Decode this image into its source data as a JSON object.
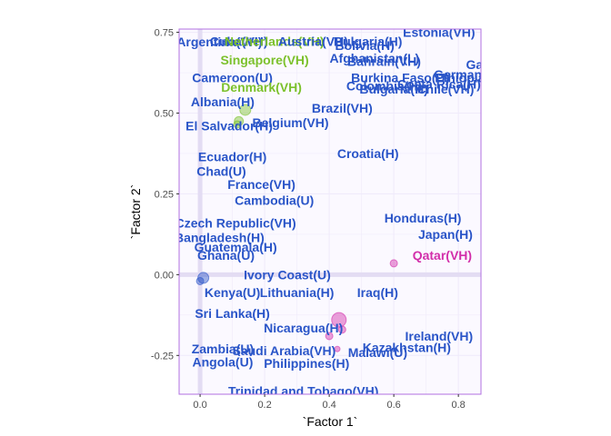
{
  "chart_data": {
    "type": "scatter",
    "xlabel": "`Factor 1`",
    "ylabel": "`Factor 2`",
    "xlim": [
      -0.065,
      0.87
    ],
    "ylim": [
      -0.37,
      0.76
    ],
    "x_ticks": [
      0.0,
      0.2,
      0.4,
      0.6,
      0.8
    ],
    "y_ticks": [
      -0.25,
      0.0,
      0.25,
      0.5,
      0.75
    ],
    "x_tick_labels": [
      "0.0",
      "0.2",
      "0.4",
      "0.6",
      "0.8"
    ],
    "y_tick_labels": [
      "-0.25",
      "0.00",
      "0.25",
      "0.50",
      "0.75"
    ],
    "grid": true,
    "colors": {
      "blue": "#2a55c8",
      "green": "#7cc12c",
      "magenta": "#d22faa",
      "panel_border": "#b070e0",
      "panel_bg": "#fbf9ff",
      "grid": "#f0ebfb"
    },
    "markers": [
      {
        "x": 0.14,
        "y": 0.51,
        "r": 6,
        "color": "green"
      },
      {
        "x": 0.12,
        "y": 0.475,
        "r": 5,
        "color": "green"
      },
      {
        "x": 0.115,
        "y": 0.465,
        "r": 4,
        "color": "green"
      },
      {
        "x": 0.6,
        "y": 0.035,
        "r": 4,
        "color": "magenta"
      },
      {
        "x": 0.43,
        "y": -0.14,
        "r": 8,
        "color": "magenta"
      },
      {
        "x": 0.44,
        "y": -0.17,
        "r": 4,
        "color": "magenta"
      },
      {
        "x": 0.4,
        "y": -0.19,
        "r": 4,
        "color": "magenta"
      },
      {
        "x": 0.425,
        "y": -0.23,
        "r": 3,
        "color": "magenta"
      },
      {
        "x": 0.01,
        "y": -0.01,
        "r": 6,
        "color": "blue"
      },
      {
        "x": 0.0,
        "y": -0.02,
        "r": 4,
        "color": "blue"
      }
    ],
    "labels": [
      {
        "text": "Argentina(VH)",
        "x": 0.06,
        "y": 0.72,
        "color": "blue"
      },
      {
        "text": "Cuba(VH)",
        "x": 0.12,
        "y": 0.722,
        "color": "blue"
      },
      {
        "text": "Netherlands(VH)",
        "x": 0.23,
        "y": 0.722,
        "color": "green"
      },
      {
        "text": "Austria(VH)",
        "x": 0.35,
        "y": 0.722,
        "color": "blue"
      },
      {
        "text": "Bulgaria(H)",
        "x": 0.52,
        "y": 0.722,
        "color": "blue"
      },
      {
        "text": "Bolivia(H)",
        "x": 0.51,
        "y": 0.71,
        "color": "blue"
      },
      {
        "text": "Afghanistan(L)",
        "x": 0.54,
        "y": 0.67,
        "color": "blue"
      },
      {
        "text": "Bahrain(VH)",
        "x": 0.57,
        "y": 0.66,
        "color": "blue"
      },
      {
        "text": "Estonia(VH)",
        "x": 0.74,
        "y": 0.75,
        "color": "blue"
      },
      {
        "text": "Singapore(VH)",
        "x": 0.2,
        "y": 0.665,
        "color": "green"
      },
      {
        "text": "Cameroon(U)",
        "x": 0.1,
        "y": 0.61,
        "color": "blue"
      },
      {
        "text": "Denmark(VH)",
        "x": 0.19,
        "y": 0.58,
        "color": "green"
      },
      {
        "text": "Albania(H)",
        "x": 0.07,
        "y": 0.535,
        "color": "blue"
      },
      {
        "text": "El Salvador(H)",
        "x": 0.09,
        "y": 0.46,
        "color": "blue"
      },
      {
        "text": "Belgium(VH)",
        "x": 0.28,
        "y": 0.47,
        "color": "blue"
      },
      {
        "text": "Burkina Faso(U)",
        "x": 0.62,
        "y": 0.61,
        "color": "blue"
      },
      {
        "text": "Ethiopia(L)",
        "x": 0.83,
        "y": 0.61,
        "color": "blue"
      },
      {
        "text": "Germany(VH)",
        "x": 0.85,
        "y": 0.62,
        "color": "blue"
      },
      {
        "text": "Ga",
        "x": 0.85,
        "y": 0.65,
        "color": "blue"
      },
      {
        "text": "Colombia(H)",
        "x": 0.57,
        "y": 0.585,
        "color": "blue"
      },
      {
        "text": "Costa Rica(H)",
        "x": 0.74,
        "y": 0.59,
        "color": "blue"
      },
      {
        "text": "Bulgaria(H)",
        "x": 0.6,
        "y": 0.575,
        "color": "blue"
      },
      {
        "text": "Chile(VH)",
        "x": 0.76,
        "y": 0.575,
        "color": "blue"
      },
      {
        "text": "Brazil(VH)",
        "x": 0.44,
        "y": 0.515,
        "color": "blue"
      },
      {
        "text": "Croatia(H)",
        "x": 0.52,
        "y": 0.375,
        "color": "blue"
      },
      {
        "text": "Ecuador(H)",
        "x": 0.1,
        "y": 0.365,
        "color": "blue"
      },
      {
        "text": "Chad(U)",
        "x": 0.066,
        "y": 0.32,
        "color": "blue"
      },
      {
        "text": "France(VH)",
        "x": 0.19,
        "y": 0.28,
        "color": "blue"
      },
      {
        "text": "Cambodia(U)",
        "x": 0.23,
        "y": 0.23,
        "color": "blue"
      },
      {
        "text": "Czech Republic(VH)",
        "x": 0.11,
        "y": 0.16,
        "color": "blue"
      },
      {
        "text": "Honduras(H)",
        "x": 0.69,
        "y": 0.175,
        "color": "blue"
      },
      {
        "text": "Japan(H)",
        "x": 0.76,
        "y": 0.125,
        "color": "blue"
      },
      {
        "text": "Qatar(VH)",
        "x": 0.75,
        "y": 0.06,
        "color": "magenta"
      },
      {
        "text": "Bangladesh(H)",
        "x": 0.06,
        "y": 0.115,
        "color": "blue"
      },
      {
        "text": "Guatemala(H)",
        "x": 0.11,
        "y": 0.085,
        "color": "blue"
      },
      {
        "text": "Ghana(U)",
        "x": 0.08,
        "y": 0.06,
        "color": "blue"
      },
      {
        "text": "Ivory Coast(U)",
        "x": 0.27,
        "y": 0.0,
        "color": "blue"
      },
      {
        "text": "Iraq(H)",
        "x": 0.55,
        "y": -0.055,
        "color": "blue"
      },
      {
        "text": "Lithuania(H)",
        "x": 0.3,
        "y": -0.055,
        "color": "blue"
      },
      {
        "text": "Kenya(U)",
        "x": 0.1,
        "y": -0.055,
        "color": "blue"
      },
      {
        "text": "Sri Lanka(H)",
        "x": 0.1,
        "y": -0.12,
        "color": "blue"
      },
      {
        "text": "Nicaragua(H)",
        "x": 0.32,
        "y": -0.165,
        "color": "blue"
      },
      {
        "text": "Ireland(VH)",
        "x": 0.74,
        "y": -0.19,
        "color": "blue"
      },
      {
        "text": "Kazakhstan(H)",
        "x": 0.64,
        "y": -0.225,
        "color": "blue"
      },
      {
        "text": "Malawi(U)",
        "x": 0.55,
        "y": -0.24,
        "color": "blue"
      },
      {
        "text": "Zambia(U)",
        "x": 0.07,
        "y": -0.23,
        "color": "blue"
      },
      {
        "text": "Saudi Arabia(VH)",
        "x": 0.26,
        "y": -0.235,
        "color": "blue"
      },
      {
        "text": "Angola(U)",
        "x": 0.07,
        "y": -0.27,
        "color": "blue"
      },
      {
        "text": "Philippines(H)",
        "x": 0.33,
        "y": -0.275,
        "color": "blue"
      },
      {
        "text": "Trinidad and Tobago(VH)",
        "x": 0.32,
        "y": -0.36,
        "color": "blue"
      }
    ]
  }
}
